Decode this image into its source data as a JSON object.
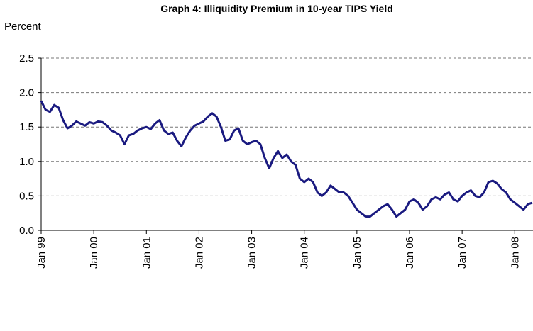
{
  "chart_data": {
    "type": "line",
    "title": "Graph 4: Illiquidity Premium in 10-year TIPS Yield",
    "y_label": "Percent",
    "x": [
      "1999-01",
      "1999-02",
      "1999-03",
      "1999-04",
      "1999-05",
      "1999-06",
      "1999-07",
      "1999-08",
      "1999-09",
      "1999-10",
      "1999-11",
      "1999-12",
      "2000-01",
      "2000-02",
      "2000-03",
      "2000-04",
      "2000-05",
      "2000-06",
      "2000-07",
      "2000-08",
      "2000-09",
      "2000-10",
      "2000-11",
      "2000-12",
      "2001-01",
      "2001-02",
      "2001-03",
      "2001-04",
      "2001-05",
      "2001-06",
      "2001-07",
      "2001-08",
      "2001-09",
      "2001-10",
      "2001-11",
      "2001-12",
      "2002-01",
      "2002-02",
      "2002-03",
      "2002-04",
      "2002-05",
      "2002-06",
      "2002-07",
      "2002-08",
      "2002-09",
      "2002-10",
      "2002-11",
      "2002-12",
      "2003-01",
      "2003-02",
      "2003-03",
      "2003-04",
      "2003-05",
      "2003-06",
      "2003-07",
      "2003-08",
      "2003-09",
      "2003-10",
      "2003-11",
      "2003-12",
      "2004-01",
      "2004-02",
      "2004-03",
      "2004-04",
      "2004-05",
      "2004-06",
      "2004-07",
      "2004-08",
      "2004-09",
      "2004-10",
      "2004-11",
      "2004-12",
      "2005-01",
      "2005-02",
      "2005-03",
      "2005-04",
      "2005-05",
      "2005-06",
      "2005-07",
      "2005-08",
      "2005-09",
      "2005-10",
      "2005-11",
      "2005-12",
      "2006-01",
      "2006-02",
      "2006-03",
      "2006-04",
      "2006-05",
      "2006-06",
      "2006-07",
      "2006-08",
      "2006-09",
      "2006-10",
      "2006-11",
      "2006-12",
      "2007-01",
      "2007-02",
      "2007-03",
      "2007-04",
      "2007-05",
      "2007-06",
      "2007-07",
      "2007-08",
      "2007-09",
      "2007-10",
      "2007-11",
      "2007-12",
      "2008-01",
      "2008-02",
      "2008-03",
      "2008-04",
      "2008-05"
    ],
    "series": [
      {
        "name": "Illiquidity premium",
        "color": "#1a1a80",
        "values": [
          1.88,
          1.75,
          1.72,
          1.82,
          1.78,
          1.6,
          1.48,
          1.52,
          1.58,
          1.55,
          1.52,
          1.57,
          1.55,
          1.58,
          1.57,
          1.52,
          1.45,
          1.42,
          1.38,
          1.25,
          1.38,
          1.4,
          1.45,
          1.48,
          1.5,
          1.47,
          1.55,
          1.6,
          1.45,
          1.4,
          1.42,
          1.3,
          1.22,
          1.35,
          1.45,
          1.52,
          1.55,
          1.58,
          1.65,
          1.7,
          1.65,
          1.5,
          1.3,
          1.32,
          1.45,
          1.48,
          1.3,
          1.25,
          1.28,
          1.3,
          1.25,
          1.05,
          0.9,
          1.05,
          1.15,
          1.05,
          1.1,
          1.0,
          0.95,
          0.75,
          0.7,
          0.75,
          0.7,
          0.55,
          0.5,
          0.55,
          0.65,
          0.6,
          0.55,
          0.55,
          0.5,
          0.4,
          0.3,
          0.25,
          0.2,
          0.2,
          0.25,
          0.3,
          0.35,
          0.38,
          0.3,
          0.2,
          0.25,
          0.3,
          0.42,
          0.45,
          0.4,
          0.3,
          0.35,
          0.45,
          0.48,
          0.45,
          0.52,
          0.55,
          0.45,
          0.42,
          0.5,
          0.55,
          0.58,
          0.5,
          0.48,
          0.55,
          0.7,
          0.72,
          0.68,
          0.6,
          0.55,
          0.45,
          0.4,
          0.35,
          0.3,
          0.38,
          0.4
        ]
      }
    ],
    "xlim": [
      "1999-01",
      "2008-05"
    ],
    "xticks": [
      {
        "value": "1999-01",
        "label": "Jan 99"
      },
      {
        "value": "2000-01",
        "label": "Jan 00"
      },
      {
        "value": "2001-01",
        "label": "Jan 01"
      },
      {
        "value": "2002-01",
        "label": "Jan 02"
      },
      {
        "value": "2003-01",
        "label": "Jan 03"
      },
      {
        "value": "2004-01",
        "label": "Jan 04"
      },
      {
        "value": "2005-01",
        "label": "Jan 05"
      },
      {
        "value": "2006-01",
        "label": "Jan 06"
      },
      {
        "value": "2007-01",
        "label": "Jan 07"
      },
      {
        "value": "2008-01",
        "label": "Jan 08"
      }
    ],
    "ylim": [
      0,
      2.5
    ],
    "yticks": [
      {
        "value": 0,
        "label": "0.0"
      },
      {
        "value": 0.5,
        "label": "0.5"
      },
      {
        "value": 1,
        "label": "1.0"
      },
      {
        "value": 1.5,
        "label": "1.5"
      },
      {
        "value": 2,
        "label": "2.0"
      },
      {
        "value": 2.5,
        "label": "2.5"
      }
    ],
    "grid": true
  }
}
